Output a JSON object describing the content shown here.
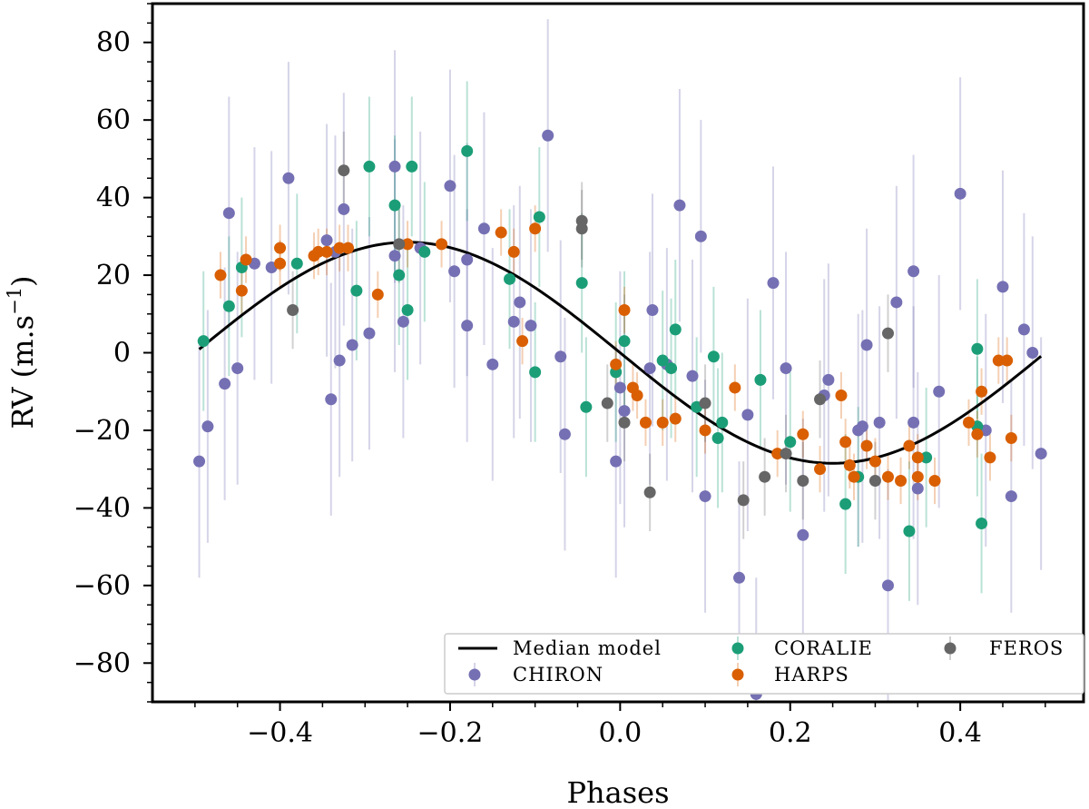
{
  "chart_data": {
    "type": "scatter",
    "title": "",
    "xlabel": "Phases",
    "ylabel": "RV (m.s",
    "ylabel_exp": "−1",
    "ylabel_close": ")",
    "xlim": [
      -0.55,
      0.545
    ],
    "ylim": [
      -90,
      90
    ],
    "x_ticks": [
      -0.4,
      -0.2,
      0.0,
      0.2,
      0.4
    ],
    "x_tick_labels": [
      "−0.4",
      "−0.2",
      "0.0",
      "0.2",
      "0.4"
    ],
    "y_ticks": [
      80,
      60,
      40,
      20,
      0,
      -20,
      -40,
      -60,
      -80
    ],
    "y_tick_labels": [
      "80",
      "60",
      "40",
      "20",
      "0",
      "−20",
      "−40",
      "−60",
      "−80"
    ],
    "legend": {
      "location": "lower-right",
      "entries": [
        "Median model",
        "CHIRON",
        "CORALIE",
        "HARPS",
        "FEROS"
      ]
    },
    "model": {
      "name": "Median model",
      "amplitude": 28.5,
      "color": "#000000"
    },
    "series": [
      {
        "name": "CHIRON",
        "color": "#7570b3",
        "err": 30,
        "x": [
          -0.495,
          -0.485,
          -0.465,
          -0.46,
          -0.45,
          -0.43,
          -0.41,
          -0.39,
          -0.345,
          -0.34,
          -0.335,
          -0.33,
          -0.325,
          -0.315,
          -0.295,
          -0.265,
          -0.265,
          -0.255,
          -0.235,
          -0.2,
          -0.195,
          -0.18,
          -0.18,
          -0.16,
          -0.15,
          -0.125,
          -0.118,
          -0.105,
          -0.085,
          -0.07,
          -0.065,
          -0.005,
          0.0,
          0.005,
          0.035,
          0.038,
          0.055,
          0.07,
          0.085,
          0.095,
          0.1,
          0.14,
          0.15,
          0.16,
          0.18,
          0.195,
          0.215,
          0.24,
          0.245,
          0.28,
          0.285,
          0.29,
          0.305,
          0.315,
          0.325,
          0.345,
          0.345,
          0.35,
          0.375,
          0.4,
          0.43,
          0.45,
          0.46,
          0.475,
          0.485,
          0.495
        ],
        "y": [
          -28,
          -19,
          -8,
          36,
          -4,
          23,
          22,
          45,
          29,
          -12,
          26,
          -2,
          37,
          2,
          5,
          48,
          25,
          8,
          27,
          43,
          21,
          24,
          7,
          32,
          -3,
          8,
          13,
          7,
          56,
          -1,
          -21,
          -28,
          -9,
          -15,
          -4,
          11,
          -3,
          38,
          -6,
          30,
          -37,
          -58,
          -16,
          -88,
          18,
          -4,
          -47,
          -11,
          -7,
          -20,
          -19,
          2,
          -18,
          -60,
          13,
          -18,
          21,
          -35,
          -10,
          41,
          -20,
          17,
          -37,
          6,
          0,
          -26
        ],
        "comment": "CHIRON radial velocity measurements"
      },
      {
        "name": "CORALIE",
        "color": "#1b9e77",
        "err": 18,
        "x": [
          -0.49,
          -0.46,
          -0.445,
          -0.38,
          -0.31,
          -0.295,
          -0.265,
          -0.26,
          -0.25,
          -0.245,
          -0.23,
          -0.18,
          -0.13,
          -0.1,
          -0.095,
          -0.045,
          -0.04,
          -0.005,
          0.005,
          0.05,
          0.06,
          0.065,
          0.09,
          0.11,
          0.115,
          0.12,
          0.165,
          0.2,
          0.265,
          0.28,
          0.34,
          0.36,
          0.42,
          0.42,
          0.425
        ],
        "y": [
          3,
          12,
          22,
          23,
          16,
          48,
          38,
          20,
          11,
          48,
          26,
          52,
          19,
          -5,
          35,
          18,
          -14,
          -5,
          3,
          -2,
          -4,
          6,
          -14,
          -1,
          -22,
          -18,
          -7,
          -23,
          -39,
          -32,
          -46,
          -27,
          1,
          -19,
          -44
        ]
      },
      {
        "name": "HARPS",
        "color": "#d95f02",
        "err": 6,
        "x": [
          -0.47,
          -0.445,
          -0.44,
          -0.4,
          -0.4,
          -0.36,
          -0.355,
          -0.345,
          -0.33,
          -0.32,
          -0.285,
          -0.25,
          -0.21,
          -0.14,
          -0.125,
          -0.115,
          -0.1,
          -0.005,
          0.005,
          0.015,
          0.02,
          0.03,
          0.05,
          0.065,
          0.1,
          0.135,
          0.185,
          0.215,
          0.235,
          0.26,
          0.265,
          0.27,
          0.275,
          0.29,
          0.3,
          0.315,
          0.33,
          0.34,
          0.35,
          0.35,
          0.37,
          0.41,
          0.42,
          0.425,
          0.435,
          0.445,
          0.455,
          0.46
        ],
        "y": [
          20,
          16,
          24,
          27,
          23,
          25,
          26,
          26,
          27,
          27,
          15,
          28,
          28,
          31,
          26,
          3,
          32,
          -3,
          11,
          -9,
          -11,
          -18,
          -18,
          -17,
          -20,
          -9,
          -26,
          -21,
          -30,
          -11,
          -23,
          -29,
          -32,
          -24,
          -28,
          -32,
          -33,
          -24,
          -27,
          -32,
          -33,
          -18,
          -21,
          -10,
          -27,
          -2,
          -2,
          -22
        ]
      },
      {
        "name": "FEROS",
        "color": "#666666",
        "err": 10,
        "x": [
          -0.385,
          -0.325,
          -0.26,
          -0.045,
          -0.045,
          -0.015,
          0.005,
          0.035,
          0.1,
          0.145,
          0.17,
          0.195,
          0.215,
          0.235,
          0.3,
          0.315
        ],
        "y": [
          11,
          47,
          28,
          34,
          32,
          -13,
          -18,
          -36,
          -13,
          -38,
          -32,
          -26,
          -33,
          -12,
          -33,
          5
        ]
      }
    ]
  }
}
